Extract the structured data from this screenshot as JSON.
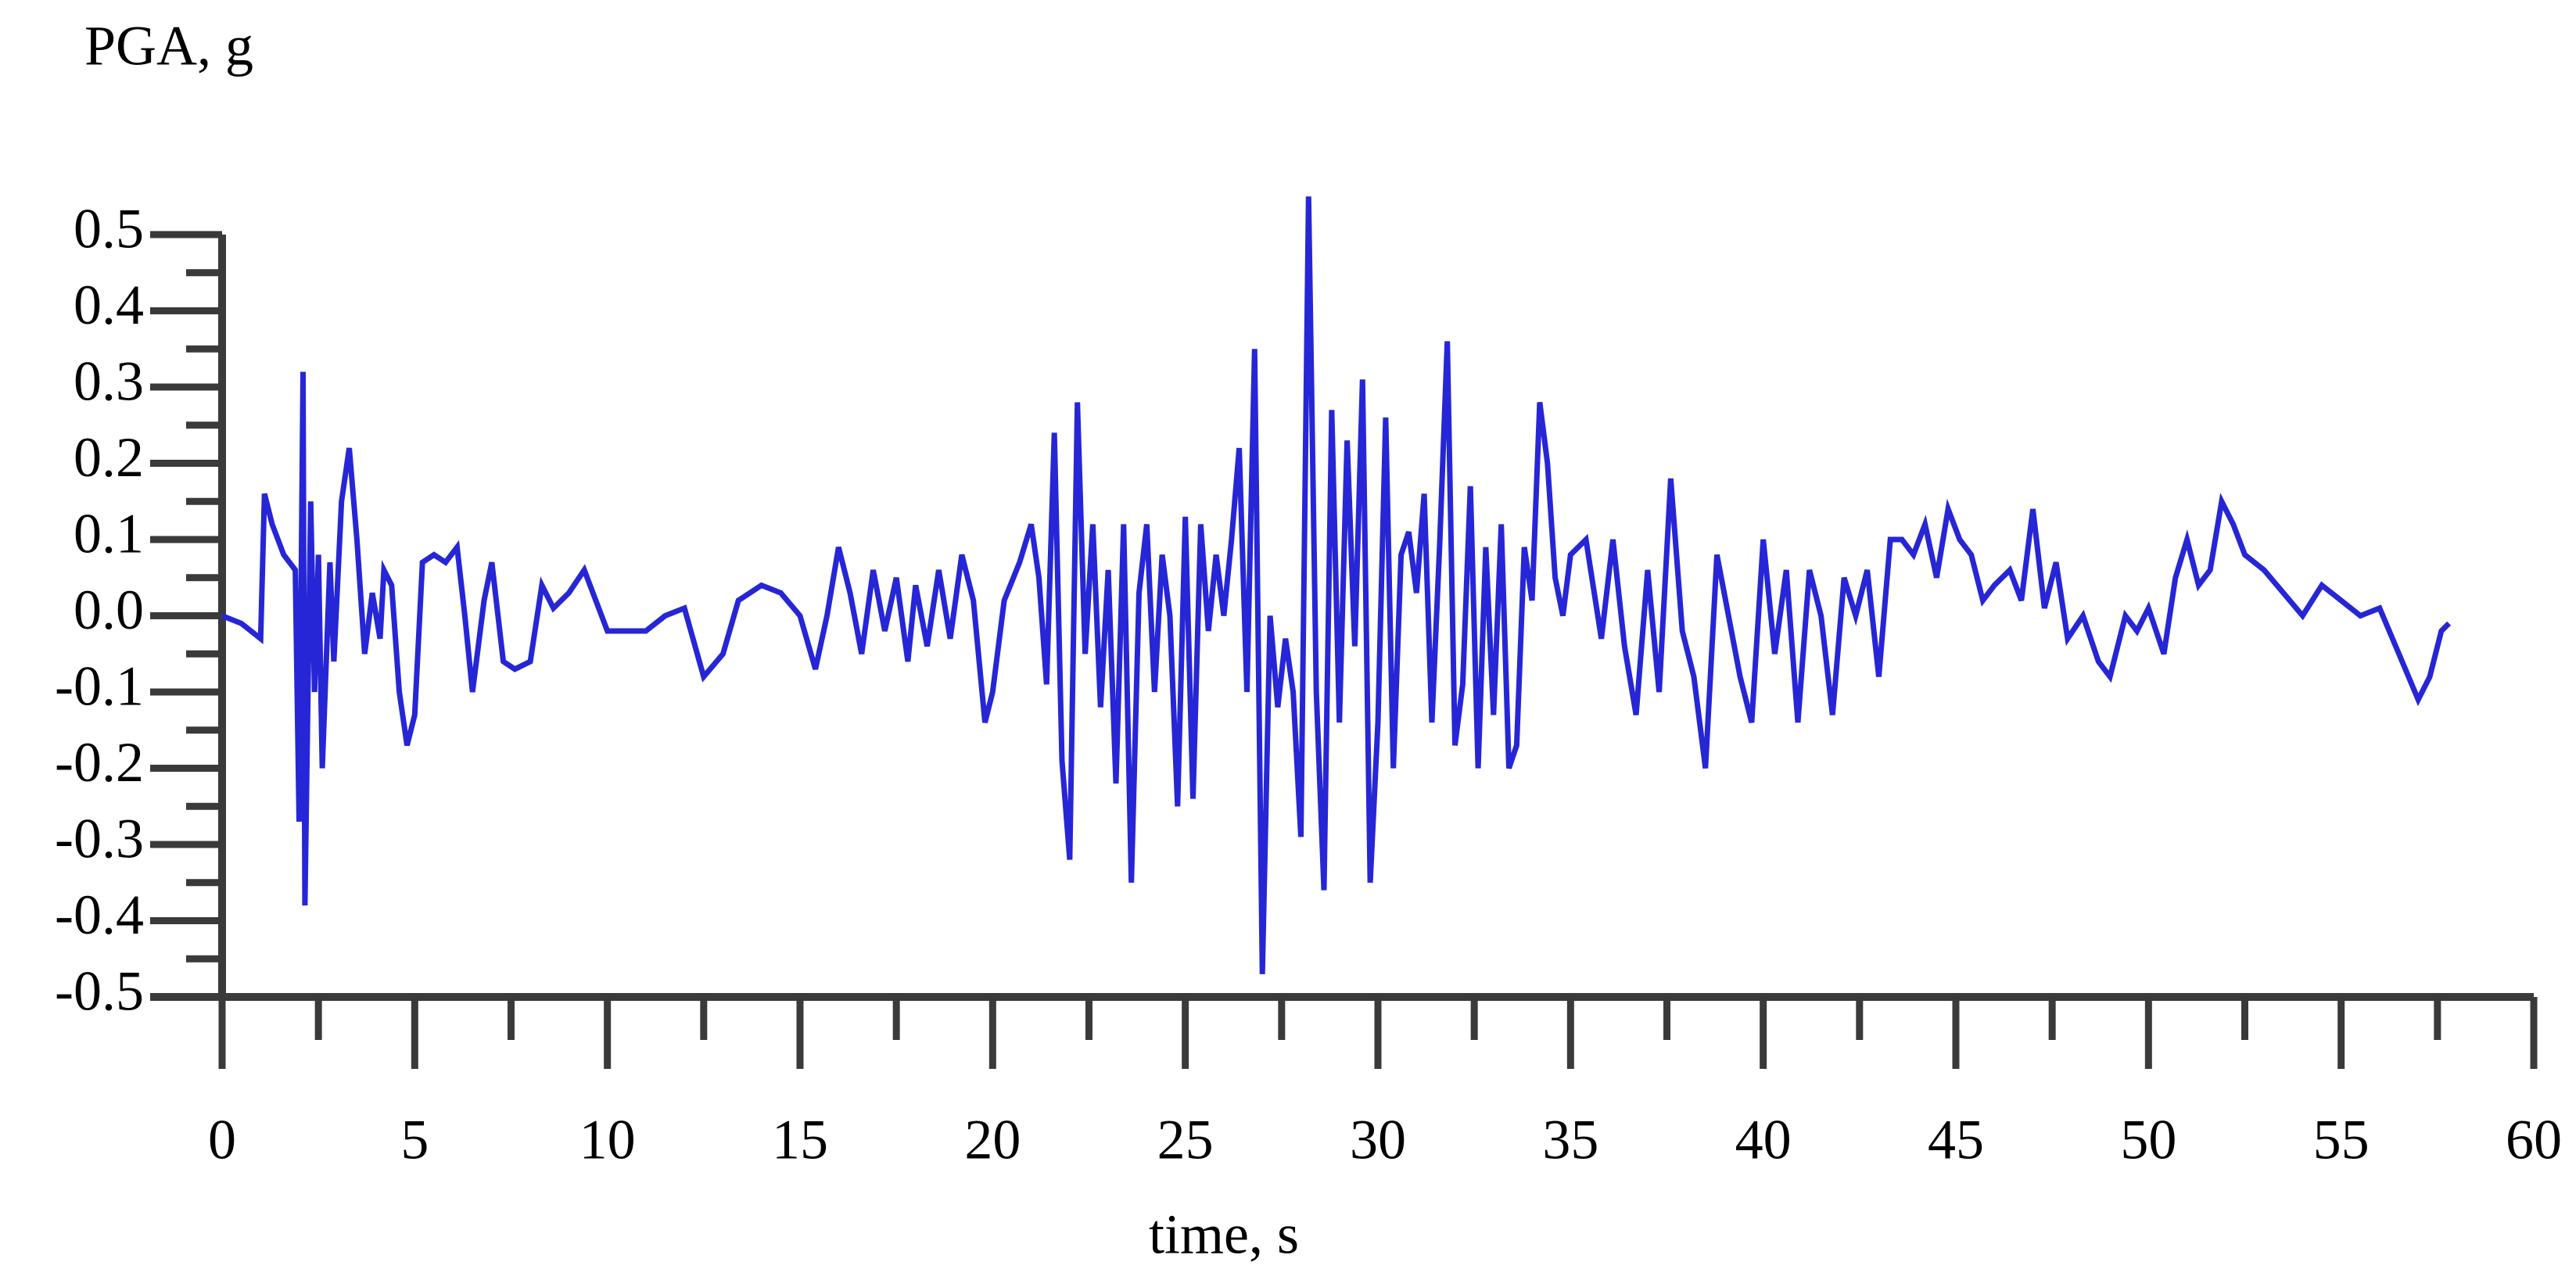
{
  "chart_data": {
    "type": "line",
    "ylabel": "PGA, g",
    "xlabel": "time, s",
    "color": "#2626d6",
    "xlim": [
      0,
      60
    ],
    "ylim": [
      -0.5,
      0.5
    ],
    "xticks": [
      0,
      5,
      10,
      15,
      20,
      25,
      30,
      35,
      40,
      45,
      50,
      55,
      60
    ],
    "yticks": [
      0.5,
      0.4,
      0.3,
      0.2,
      0.1,
      {
        "value": 0,
        "label": "0.0"
      },
      -0.1,
      -0.2,
      -0.3,
      -0.4,
      -0.5
    ],
    "xminorticks": [
      2.5,
      7.5,
      12.5,
      17.5,
      22.5,
      27.5,
      32.5,
      37.5,
      42.5,
      47.5,
      52.5,
      57.5
    ],
    "yminorticks": [
      0.45,
      0.35,
      0.25,
      0.15,
      0.05,
      -0.05,
      -0.15,
      -0.25,
      -0.35,
      -0.45
    ],
    "x": [
      0,
      0.5,
      1,
      1.1,
      1.3,
      1.6,
      1.9,
      2.0,
      2.1,
      2.15,
      2.3,
      2.4,
      2.5,
      2.6,
      2.8,
      2.9,
      3.1,
      3.3,
      3.5,
      3.7,
      3.9,
      4.1,
      4.2,
      4.4,
      4.6,
      4.8,
      5.0,
      5.2,
      5.5,
      5.8,
      6.1,
      6.3,
      6.5,
      6.8,
      7.0,
      7.3,
      7.6,
      8.0,
      8.3,
      8.6,
      9.0,
      9.4,
      10.0,
      10.5,
      11.0,
      11.5,
      12.0,
      12.5,
      13.0,
      13.4,
      14.0,
      14.5,
      15.0,
      15.4,
      15.7,
      16.0,
      16.3,
      16.6,
      16.9,
      17.2,
      17.5,
      17.8,
      18.0,
      18.3,
      18.6,
      18.9,
      19.2,
      19.5,
      19.8,
      20.0,
      20.3,
      20.7,
      21.0,
      21.2,
      21.4,
      21.6,
      21.8,
      22.0,
      22.2,
      22.4,
      22.6,
      22.8,
      23.0,
      23.2,
      23.4,
      23.6,
      23.8,
      24.0,
      24.2,
      24.4,
      24.6,
      24.8,
      25.0,
      25.2,
      25.4,
      25.6,
      25.8,
      26.0,
      26.2,
      26.4,
      26.6,
      26.8,
      27.0,
      27.2,
      27.4,
      27.6,
      27.8,
      28.0,
      28.2,
      28.4,
      28.6,
      28.8,
      29.0,
      29.2,
      29.4,
      29.6,
      29.8,
      30.0,
      30.2,
      30.4,
      30.6,
      30.8,
      31.0,
      31.2,
      31.4,
      31.6,
      31.8,
      32.0,
      32.2,
      32.4,
      32.6,
      32.8,
      33.0,
      33.2,
      33.4,
      33.6,
      33.8,
      34.0,
      34.2,
      34.4,
      34.6,
      34.8,
      35.0,
      35.4,
      35.8,
      36.1,
      36.4,
      36.7,
      37.0,
      37.3,
      37.6,
      37.9,
      38.2,
      38.5,
      38.8,
      39.1,
      39.4,
      39.7,
      40.0,
      40.3,
      40.6,
      40.9,
      41.2,
      41.5,
      41.8,
      42.1,
      42.4,
      42.7,
      43.0,
      43.3,
      43.6,
      43.9,
      44.2,
      44.5,
      44.8,
      45.1,
      45.4,
      45.7,
      46.0,
      46.4,
      46.7,
      47.0,
      47.3,
      47.6,
      47.9,
      48.3,
      48.7,
      49.0,
      49.4,
      49.7,
      50.0,
      50.4,
      50.7,
      51.0,
      51.3,
      51.6,
      51.9,
      52.2,
      52.5,
      53.0,
      53.5,
      54.0,
      54.5,
      55.0,
      55.5,
      56.0,
      56.5,
      57.0,
      57.3,
      57.6,
      57.8
    ],
    "values": [
      0,
      -0.01,
      -0.03,
      0.16,
      0.12,
      0.08,
      0.06,
      -0.27,
      0.32,
      -0.38,
      0.15,
      -0.1,
      0.08,
      -0.2,
      0.07,
      -0.06,
      0.15,
      0.22,
      0.1,
      -0.05,
      0.03,
      -0.03,
      0.06,
      0.04,
      -0.1,
      -0.17,
      -0.13,
      0.07,
      0.08,
      0.07,
      0.09,
      0.0,
      -0.1,
      0.02,
      0.07,
      -0.06,
      -0.07,
      -0.06,
      0.04,
      0.01,
      0.03,
      0.06,
      -0.02,
      -0.02,
      -0.02,
      0.0,
      0.01,
      -0.08,
      -0.05,
      0.02,
      0.04,
      0.03,
      0.0,
      -0.07,
      0.0,
      0.09,
      0.03,
      -0.05,
      0.06,
      -0.02,
      0.05,
      -0.06,
      0.04,
      -0.04,
      0.06,
      -0.03,
      0.08,
      0.02,
      -0.14,
      -0.1,
      0.02,
      0.07,
      0.12,
      0.05,
      -0.09,
      0.24,
      -0.19,
      -0.32,
      0.28,
      -0.05,
      0.12,
      -0.12,
      0.06,
      -0.22,
      0.12,
      -0.35,
      0.03,
      0.12,
      -0.1,
      0.08,
      0.0,
      -0.25,
      0.13,
      -0.24,
      0.12,
      -0.02,
      0.08,
      0.0,
      0.1,
      0.22,
      -0.1,
      0.35,
      -0.47,
      0.0,
      -0.12,
      -0.03,
      -0.1,
      -0.29,
      0.55,
      -0.1,
      -0.36,
      0.27,
      -0.14,
      0.23,
      -0.04,
      0.31,
      -0.35,
      -0.14,
      0.26,
      -0.2,
      0.08,
      0.11,
      0.03,
      0.16,
      -0.14,
      0.09,
      0.36,
      -0.17,
      -0.09,
      0.17,
      -0.2,
      0.09,
      -0.13,
      0.12,
      -0.2,
      -0.17,
      0.09,
      0.02,
      0.28,
      0.2,
      0.05,
      0.0,
      0.08,
      0.1,
      -0.03,
      0.1,
      -0.04,
      -0.13,
      0.06,
      -0.1,
      0.18,
      -0.02,
      -0.08,
      -0.2,
      0.08,
      0.0,
      -0.08,
      -0.14,
      0.1,
      -0.05,
      0.06,
      -0.14,
      0.06,
      0.0,
      -0.13,
      0.05,
      0.0,
      0.06,
      -0.08,
      0.1,
      0.1,
      0.08,
      0.12,
      0.05,
      0.14,
      0.1,
      0.08,
      0.02,
      0.04,
      0.06,
      0.02,
      0.14,
      0.01,
      0.07,
      -0.03,
      0.0,
      -0.06,
      -0.08,
      0.0,
      -0.02,
      0.01,
      -0.05,
      0.05,
      0.1,
      0.04,
      0.06,
      0.15,
      0.12,
      0.08,
      0.06,
      0.03,
      0.0,
      0.04,
      0.02,
      0.0,
      0.01,
      -0.05,
      -0.11,
      -0.08,
      -0.02,
      -0.01
    ]
  }
}
